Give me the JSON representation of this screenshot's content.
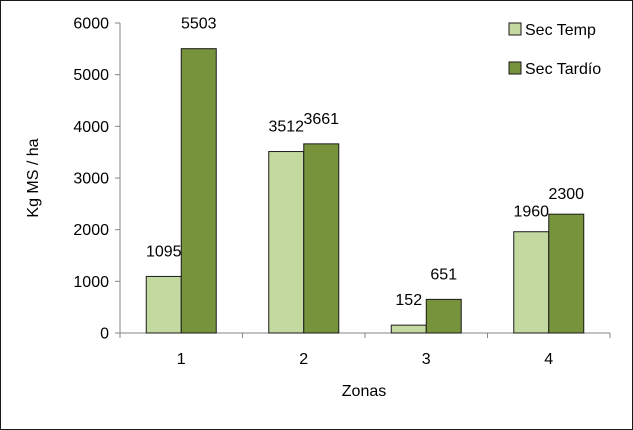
{
  "chart_data": {
    "type": "bar",
    "title": "",
    "xlabel": "Zonas",
    "ylabel": "Kg MS / ha",
    "ylim": [
      0,
      6000
    ],
    "yticks": [
      0,
      1000,
      2000,
      3000,
      4000,
      5000,
      6000
    ],
    "categories": [
      "1",
      "2",
      "3",
      "4"
    ],
    "series": [
      {
        "name": "Sec Temp",
        "values": [
          1095,
          3512,
          152,
          1960
        ],
        "color": "#c4d9a0"
      },
      {
        "name": "Sec Tardío",
        "values": [
          5503,
          3661,
          651,
          2300
        ],
        "color": "#77933c"
      }
    ],
    "grid": false,
    "legend_position": "top-right",
    "bar_border_color": "#1a1a1a",
    "data_labels": true
  }
}
